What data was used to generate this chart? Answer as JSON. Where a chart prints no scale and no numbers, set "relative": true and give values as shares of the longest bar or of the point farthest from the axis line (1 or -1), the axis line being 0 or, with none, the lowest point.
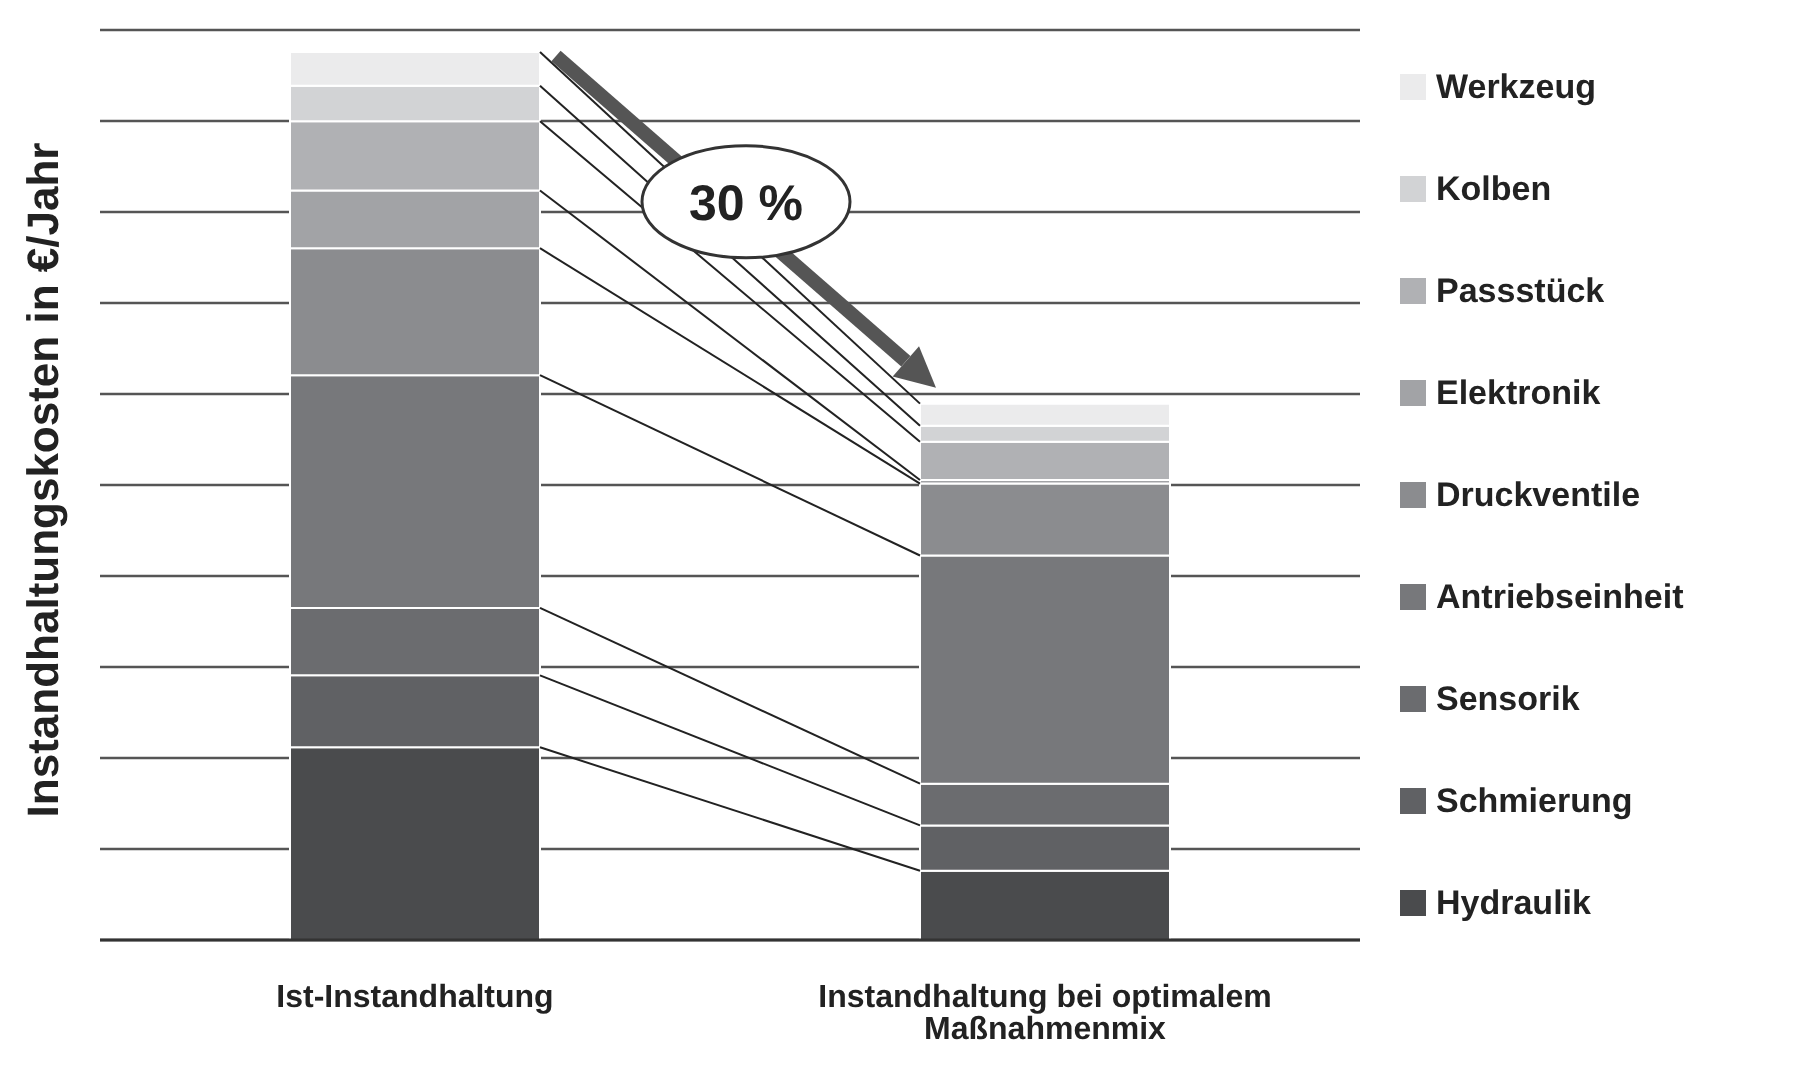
{
  "chart_data": {
    "type": "bar",
    "stacked": true,
    "relative": true,
    "ylabel": "Instandhaltungskosten in €/Jahr",
    "categories": [
      "Ist-Instandhaltung",
      "Instandhaltung bei optimalem Maßnahmenmix"
    ],
    "grid": "y",
    "legend": "right",
    "annotations": [
      "30 %"
    ],
    "series": [
      {
        "name": "Hydraulik",
        "color": "#4a4b4d",
        "values": [
          0.217,
          0.078
        ]
      },
      {
        "name": "Schmierung",
        "color": "#606164",
        "values": [
          0.081,
          0.051
        ]
      },
      {
        "name": "Sensorik",
        "color": "#6b6c6f",
        "values": [
          0.076,
          0.047
        ]
      },
      {
        "name": "Antriebseinheit",
        "color": "#77787b",
        "values": [
          0.262,
          0.257
        ]
      },
      {
        "name": "Druckventile",
        "color": "#8b8c8f",
        "values": [
          0.143,
          0.081
        ]
      },
      {
        "name": "Elektronik",
        "color": "#a2a3a6",
        "values": [
          0.065,
          0.004
        ]
      },
      {
        "name": "Passstück",
        "color": "#b0b1b4",
        "values": [
          0.078,
          0.043
        ]
      },
      {
        "name": "Kolben",
        "color": "#d2d3d5",
        "values": [
          0.04,
          0.018
        ]
      },
      {
        "name": "Werkzeug",
        "color": "#ebebec",
        "values": [
          0.038,
          0.025
        ]
      }
    ]
  }
}
